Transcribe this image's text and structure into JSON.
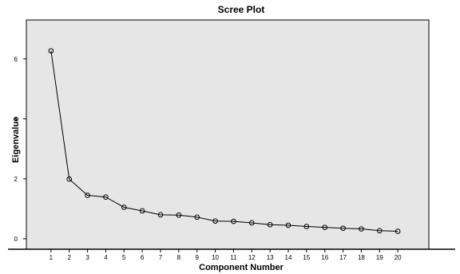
{
  "chart_data": {
    "type": "line",
    "title": "Scree Plot",
    "xlabel": "Component Number",
    "ylabel": "Eigenvalue",
    "x": [
      1,
      2,
      3,
      4,
      5,
      6,
      7,
      8,
      9,
      10,
      11,
      12,
      13,
      14,
      15,
      16,
      17,
      18,
      19,
      20
    ],
    "series": [
      {
        "values": [
          6.27,
          1.99,
          1.45,
          1.39,
          1.05,
          0.93,
          0.8,
          0.79,
          0.72,
          0.59,
          0.58,
          0.53,
          0.47,
          0.45,
          0.41,
          0.38,
          0.35,
          0.33,
          0.27,
          0.25
        ]
      }
    ],
    "yticks": [
      0,
      2,
      4,
      6
    ],
    "xticks": [
      1,
      2,
      3,
      4,
      5,
      6,
      7,
      8,
      9,
      10,
      11,
      12,
      13,
      14,
      15,
      16,
      17,
      18,
      19,
      20
    ],
    "ylim": [
      -0.35,
      7.3
    ],
    "xlim": [
      -0.35,
      21.7
    ],
    "grid": false,
    "plot_background": "#e6e6e6",
    "line_color": "#000000",
    "marker": "open-circle"
  }
}
